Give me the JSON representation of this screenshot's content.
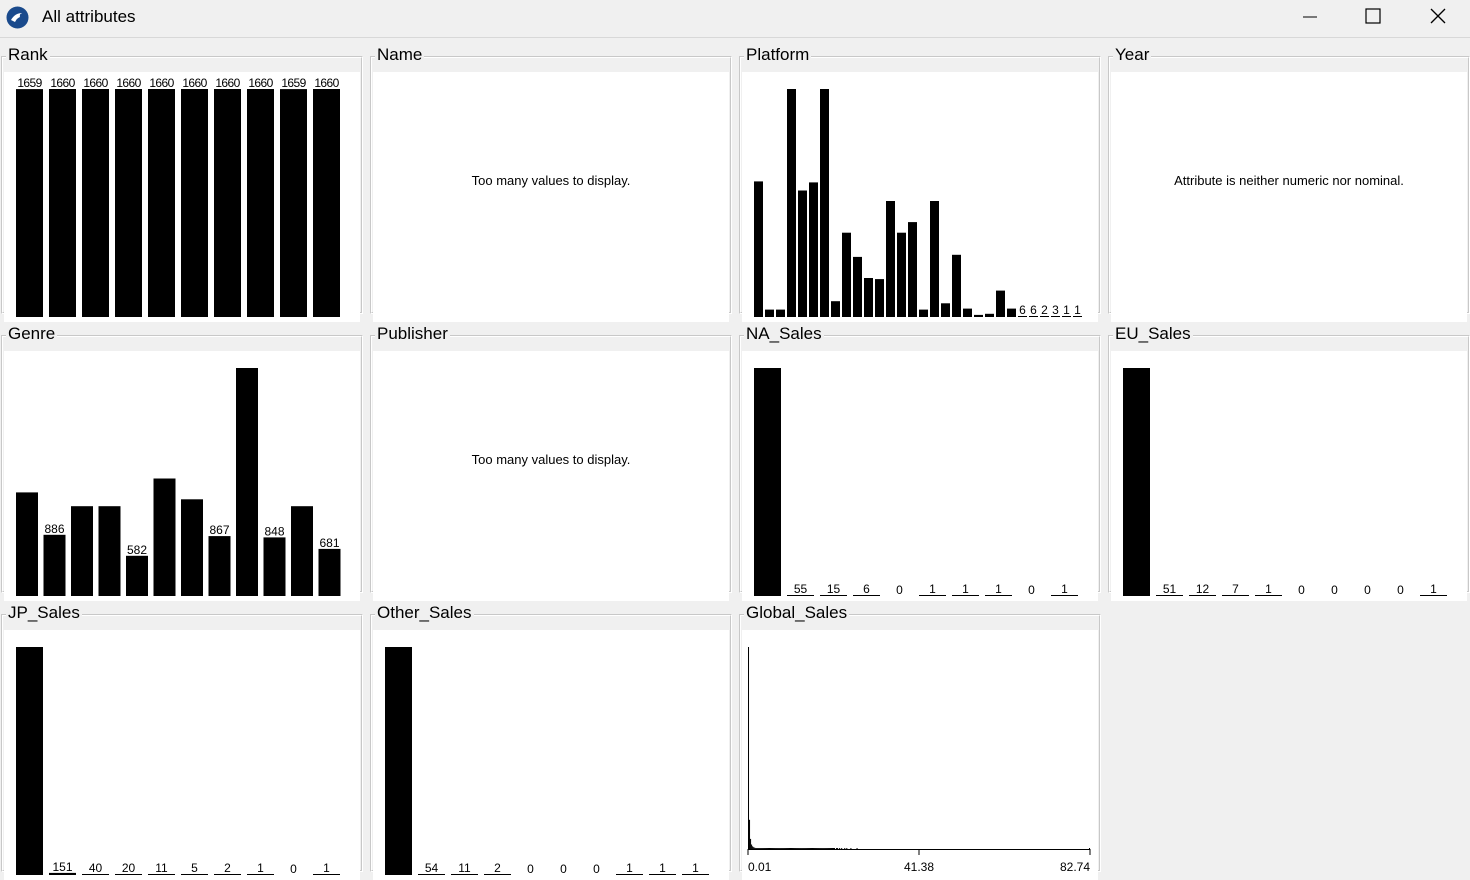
{
  "window": {
    "title": "All attributes",
    "buttons": {
      "minimize": "minimize-icon",
      "maximize": "maximize-icon",
      "close": "close-icon"
    }
  },
  "panels": [
    {
      "id": "rank",
      "title": "Rank",
      "kind": "bars",
      "values": [
        1659,
        1660,
        1660,
        1660,
        1660,
        1660,
        1660,
        1660,
        1659,
        1660
      ],
      "labels": [
        "1659",
        "1660",
        "1660",
        "1660",
        "1660",
        "1660",
        "1660",
        "1660",
        "1659",
        "1660"
      ]
    },
    {
      "id": "name",
      "title": "Name",
      "kind": "message",
      "message": "Too many values to display."
    },
    {
      "id": "platform",
      "title": "Platform",
      "kind": "bars",
      "values": [
        1286,
        70,
        70,
        2163,
        1200,
        1277,
        2163,
        150,
        800,
        570,
        370,
        360,
        1100,
        800,
        900,
        70,
        1100,
        130,
        590,
        80,
        20,
        30,
        250,
        80,
        6,
        6,
        2,
        3,
        1,
        1
      ],
      "labels": [
        "",
        "",
        "",
        "",
        "",
        "",
        "",
        "",
        "",
        "",
        "",
        "",
        "",
        "",
        "",
        "",
        "",
        "",
        "",
        "",
        "",
        "",
        "",
        "",
        "6",
        "6",
        "2",
        "3",
        "1",
        "1"
      ]
    },
    {
      "id": "year",
      "title": "Year",
      "kind": "message",
      "message": "Attribute is neither numeric nor nominal."
    },
    {
      "id": "genre",
      "title": "Genre",
      "kind": "bars",
      "values": [
        1500,
        886,
        1300,
        1300,
        582,
        1700,
        1400,
        867,
        3300,
        848,
        1300,
        681
      ],
      "labels": [
        "",
        "886",
        "",
        "",
        "582",
        "",
        "",
        "867",
        "",
        "848",
        "",
        "681"
      ]
    },
    {
      "id": "publisher",
      "title": "Publisher",
      "kind": "message",
      "message": "Too many values to display."
    },
    {
      "id": "na_sales",
      "title": "NA_Sales",
      "kind": "bars",
      "values": [
        16520,
        55,
        15,
        6,
        0,
        1,
        1,
        1,
        0,
        1
      ],
      "labels": [
        "",
        "55",
        "15",
        "6",
        "0",
        "1",
        "1",
        "1",
        "0",
        "1"
      ]
    },
    {
      "id": "eu_sales",
      "title": "EU_Sales",
      "kind": "bars",
      "values": [
        16520,
        51,
        12,
        7,
        1,
        0,
        0,
        0,
        0,
        1
      ],
      "labels": [
        "",
        "51",
        "12",
        "7",
        "1",
        "0",
        "0",
        "0",
        "0",
        "1"
      ]
    },
    {
      "id": "jp_sales",
      "title": "JP_Sales",
      "kind": "bars",
      "values": [
        16380,
        151,
        40,
        20,
        11,
        5,
        2,
        1,
        0,
        1
      ],
      "labels": [
        "",
        "151",
        "40",
        "20",
        "11",
        "5",
        "2",
        "1",
        "0",
        "1"
      ]
    },
    {
      "id": "other_sales",
      "title": "Other_Sales",
      "kind": "bars",
      "values": [
        16520,
        54,
        11,
        2,
        0,
        0,
        0,
        1,
        1,
        1
      ],
      "labels": [
        "",
        "54",
        "11",
        "2",
        "0",
        "0",
        "0",
        "1",
        "1",
        "1"
      ]
    },
    {
      "id": "global_sales",
      "title": "Global_Sales",
      "kind": "histogram",
      "x_ticks": [
        "0.01",
        "41.38",
        "82.74"
      ],
      "values": [
        9000,
        1300,
        450,
        200,
        120,
        80,
        60,
        45,
        35,
        30,
        25,
        22,
        20,
        18,
        16,
        15,
        14,
        13,
        12,
        12,
        11,
        10,
        10,
        10,
        9,
        9,
        9,
        8,
        8,
        8,
        8,
        7,
        7,
        7,
        7,
        7,
        6,
        6,
        6,
        6,
        6,
        5,
        5,
        5,
        5,
        5,
        5,
        5,
        4,
        4,
        4,
        4,
        4,
        4,
        4,
        4,
        4,
        3,
        3,
        3,
        3,
        3,
        3,
        3,
        3,
        3,
        3,
        3,
        3,
        2,
        2,
        2,
        2,
        2,
        2,
        2,
        2,
        2,
        2,
        2,
        2,
        2,
        2,
        1,
        1,
        0,
        1,
        1,
        0,
        1,
        0,
        1,
        0,
        0,
        1,
        0,
        1,
        0,
        0,
        0,
        1,
        0,
        0,
        0,
        0,
        0,
        1,
        0,
        0,
        0,
        0,
        0,
        0,
        0,
        0,
        0,
        0,
        0,
        0,
        0,
        0,
        0,
        0,
        0,
        0,
        0,
        0,
        0,
        0,
        0,
        0,
        0,
        0,
        0,
        0,
        0,
        0,
        0,
        0,
        0,
        0,
        0,
        0,
        0,
        0,
        0,
        0,
        0,
        0,
        0,
        0,
        0,
        0,
        0,
        0,
        0,
        0,
        0,
        0,
        0,
        0,
        0,
        0,
        0,
        0,
        0,
        0,
        0,
        0,
        0,
        0,
        0,
        0,
        0,
        0,
        0,
        0,
        0,
        0,
        0,
        0,
        0,
        0,
        0,
        0,
        0,
        0,
        0,
        0,
        0,
        0,
        0,
        0,
        0,
        0,
        0,
        0,
        0,
        0,
        0,
        0,
        0,
        0,
        0,
        0,
        0,
        0,
        0,
        0,
        0,
        0,
        0,
        0,
        0,
        0,
        0,
        0,
        0,
        0,
        0,
        0,
        0,
        0,
        0,
        0,
        0,
        0,
        0,
        0,
        0,
        0,
        0,
        0,
        0,
        0,
        0,
        0,
        0,
        0,
        0,
        0,
        0,
        0,
        0,
        0,
        0,
        0,
        0,
        0,
        0,
        0,
        0,
        0,
        0,
        0,
        0,
        0,
        0,
        0,
        0,
        0,
        0,
        0,
        0,
        0,
        0,
        0,
        0,
        0,
        0,
        0,
        0,
        0,
        0,
        0,
        0,
        0,
        0,
        0,
        0,
        0,
        0,
        0,
        0,
        0,
        0,
        0,
        0,
        0,
        0,
        0,
        0,
        0,
        0,
        0,
        0,
        0,
        0,
        0,
        0,
        0,
        0,
        0,
        0,
        0,
        0,
        0,
        0,
        0,
        0,
        0,
        0,
        0,
        0,
        0,
        0,
        0,
        0,
        0,
        0,
        0,
        0,
        0,
        0,
        0,
        0,
        0,
        0,
        0,
        0,
        0,
        0,
        0,
        1
      ]
    }
  ],
  "chart_data": [
    {
      "type": "bar",
      "title": "Rank",
      "values": [
        1659,
        1660,
        1660,
        1660,
        1660,
        1660,
        1660,
        1660,
        1659,
        1660
      ]
    },
    {
      "type": "bar",
      "title": "Platform",
      "values": [
        1286,
        70,
        70,
        2163,
        1200,
        1277,
        2163,
        150,
        800,
        570,
        370,
        360,
        1100,
        800,
        900,
        70,
        1100,
        130,
        590,
        80,
        20,
        30,
        250,
        80,
        6,
        6,
        2,
        3,
        1,
        1
      ]
    },
    {
      "type": "bar",
      "title": "Genre",
      "values": [
        1500,
        886,
        1300,
        1300,
        582,
        1700,
        1400,
        867,
        3300,
        848,
        1300,
        681
      ]
    },
    {
      "type": "bar",
      "title": "NA_Sales",
      "values": [
        16520,
        55,
        15,
        6,
        0,
        1,
        1,
        1,
        0,
        1
      ]
    },
    {
      "type": "bar",
      "title": "EU_Sales",
      "values": [
        16520,
        51,
        12,
        7,
        1,
        0,
        0,
        0,
        0,
        1
      ]
    },
    {
      "type": "bar",
      "title": "JP_Sales",
      "values": [
        16380,
        151,
        40,
        20,
        11,
        5,
        2,
        1,
        0,
        1
      ]
    },
    {
      "type": "bar",
      "title": "Other_Sales",
      "values": [
        16520,
        54,
        11,
        2,
        0,
        0,
        0,
        1,
        1,
        1
      ]
    },
    {
      "type": "bar",
      "title": "Global_Sales",
      "x_ticks": [
        "0.01",
        "41.38",
        "82.74"
      ]
    }
  ]
}
